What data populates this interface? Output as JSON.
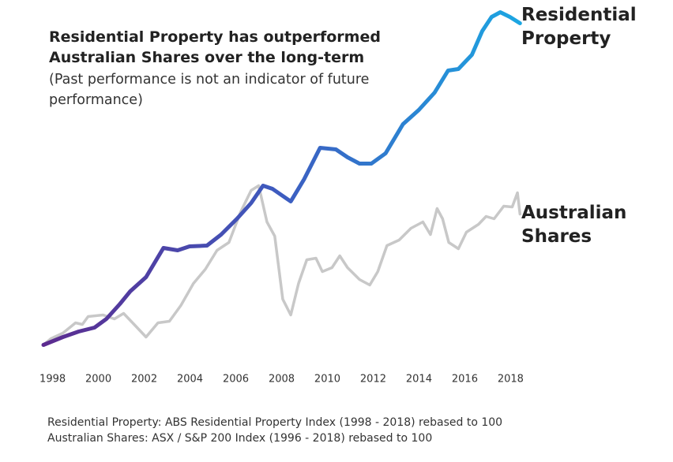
{
  "chart_data": {
    "type": "line",
    "title": "Residential Property has outperformed Australian Shares over the long-term",
    "subtitle": "(Past performance is not an indicator of future performance)",
    "notes": [
      "Residential Property: ABS Residential Property Index (1998 - 2018) rebased to 100",
      "Australian Shares: ASX / S&P 200 Index (1996 - 2018) rebased to 100"
    ],
    "xlim": [
      1997.6,
      2018.4
    ],
    "xticks": [
      1998,
      2000,
      2002,
      2004,
      2006,
      2008,
      2010,
      2012,
      2014,
      2016,
      2018
    ],
    "ylim": [
      86,
      442
    ],
    "series": [
      {
        "name": "Australian Shares",
        "color": "#c8c8c8",
        "x": [
          1997.6,
          1997.93,
          1998.45,
          1999.0,
          1999.3,
          1999.55,
          2000.2,
          2000.7,
          2001.1,
          2001.56,
          2002.08,
          2002.6,
          2003.1,
          2003.6,
          2004.15,
          2004.67,
          2005.18,
          2005.7,
          2006.2,
          2006.67,
          2007.0,
          2007.36,
          2007.7,
          2008.05,
          2008.4,
          2008.74,
          2009.1,
          2009.5,
          2009.78,
          2010.2,
          2010.54,
          2010.88,
          2011.4,
          2011.85,
          2012.2,
          2012.6,
          2013.13,
          2013.65,
          2014.17,
          2014.5,
          2014.79,
          2015.03,
          2015.3,
          2015.72,
          2016.07,
          2016.6,
          2016.93,
          2017.28,
          2017.7,
          2018.07,
          2018.3,
          2018.41
        ],
        "values": [
          100,
          106.4,
          112,
          122.4,
          120.8,
          128.8,
          130.4,
          126.4,
          132,
          120.8,
          108,
          122.4,
          124,
          140,
          162.4,
          176.8,
          196,
          204,
          234.4,
          256.8,
          261.6,
          224.8,
          210.4,
          146.4,
          130.4,
          162.4,
          186.4,
          188,
          174.4,
          178.4,
          190.4,
          178.4,
          166.4,
          160.8,
          174.4,
          200.8,
          206.4,
          218.4,
          224.8,
          212,
          238.4,
          228,
          204,
          197.6,
          214.4,
          222.4,
          230.4,
          228,
          240.8,
          240,
          254.4,
          232.8
        ]
      },
      {
        "name": "Residential Property",
        "color": "#1ca6e2",
        "gradient": [
          "#5c2b8f",
          "#3d5cc0",
          "#1ca6e2"
        ],
        "x": [
          1997.6,
          1998.45,
          1999.14,
          1999.83,
          2000.35,
          2000.94,
          2001.39,
          2002.08,
          2002.84,
          2003.46,
          2003.98,
          2004.74,
          2005.36,
          2006.05,
          2006.67,
          2007.19,
          2007.6,
          2008.4,
          2008.98,
          2009.68,
          2010.37,
          2010.88,
          2011.4,
          2011.92,
          2012.54,
          2013.3,
          2013.99,
          2014.68,
          2015.27,
          2015.72,
          2016.31,
          2016.76,
          2017.17,
          2017.55,
          2017.97,
          2018.41
        ],
        "values": [
          100,
          108,
          113.6,
          117.6,
          126.4,
          141.6,
          154.4,
          168.8,
          198.4,
          196,
          200,
          200.8,
          212,
          228,
          244,
          261.6,
          258.4,
          245.6,
          268,
          300,
          298.4,
          290.4,
          284,
          284,
          294.4,
          324,
          338.4,
          356,
          378.4,
          380,
          394.4,
          418.4,
          432.8,
          437.6,
          432.8,
          426.4
        ]
      }
    ]
  }
}
